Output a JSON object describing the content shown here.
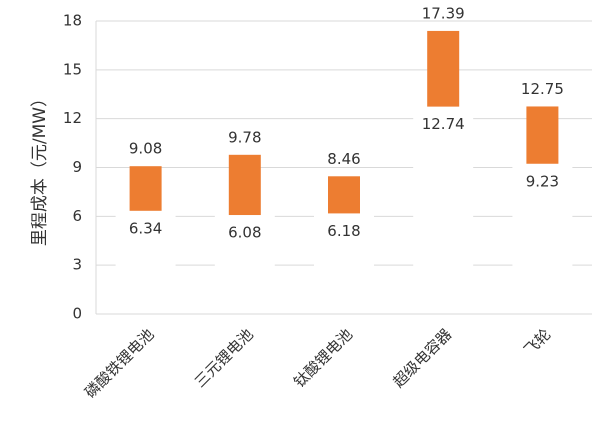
{
  "chart_data": {
    "type": "bar",
    "subtype": "floating-range",
    "ylabel": "里程成本（元/MW）",
    "xlabel": "",
    "ylim": [
      0,
      18
    ],
    "yticks": [
      0,
      3,
      6,
      9,
      12,
      15,
      18
    ],
    "grid": true,
    "bar_color": "#ED7D31",
    "categories": [
      "磷酸铁锂电池",
      "三元锂电池",
      "钛酸锂电池",
      "超级电容器",
      "飞轮"
    ],
    "series": [
      {
        "low": [
          6.34,
          6.08,
          6.18,
          12.74,
          9.23
        ],
        "high": [
          9.08,
          9.78,
          8.46,
          17.39,
          12.75
        ]
      }
    ],
    "low_labels": [
      "6.34",
      "6.08",
      "6.18",
      "12.74",
      "9.23"
    ],
    "high_labels": [
      "9.08",
      "9.78",
      "8.46",
      "17.39",
      "12.75"
    ],
    "ytick_labels": [
      "0",
      "3",
      "6",
      "9",
      "12",
      "15",
      "18"
    ]
  }
}
